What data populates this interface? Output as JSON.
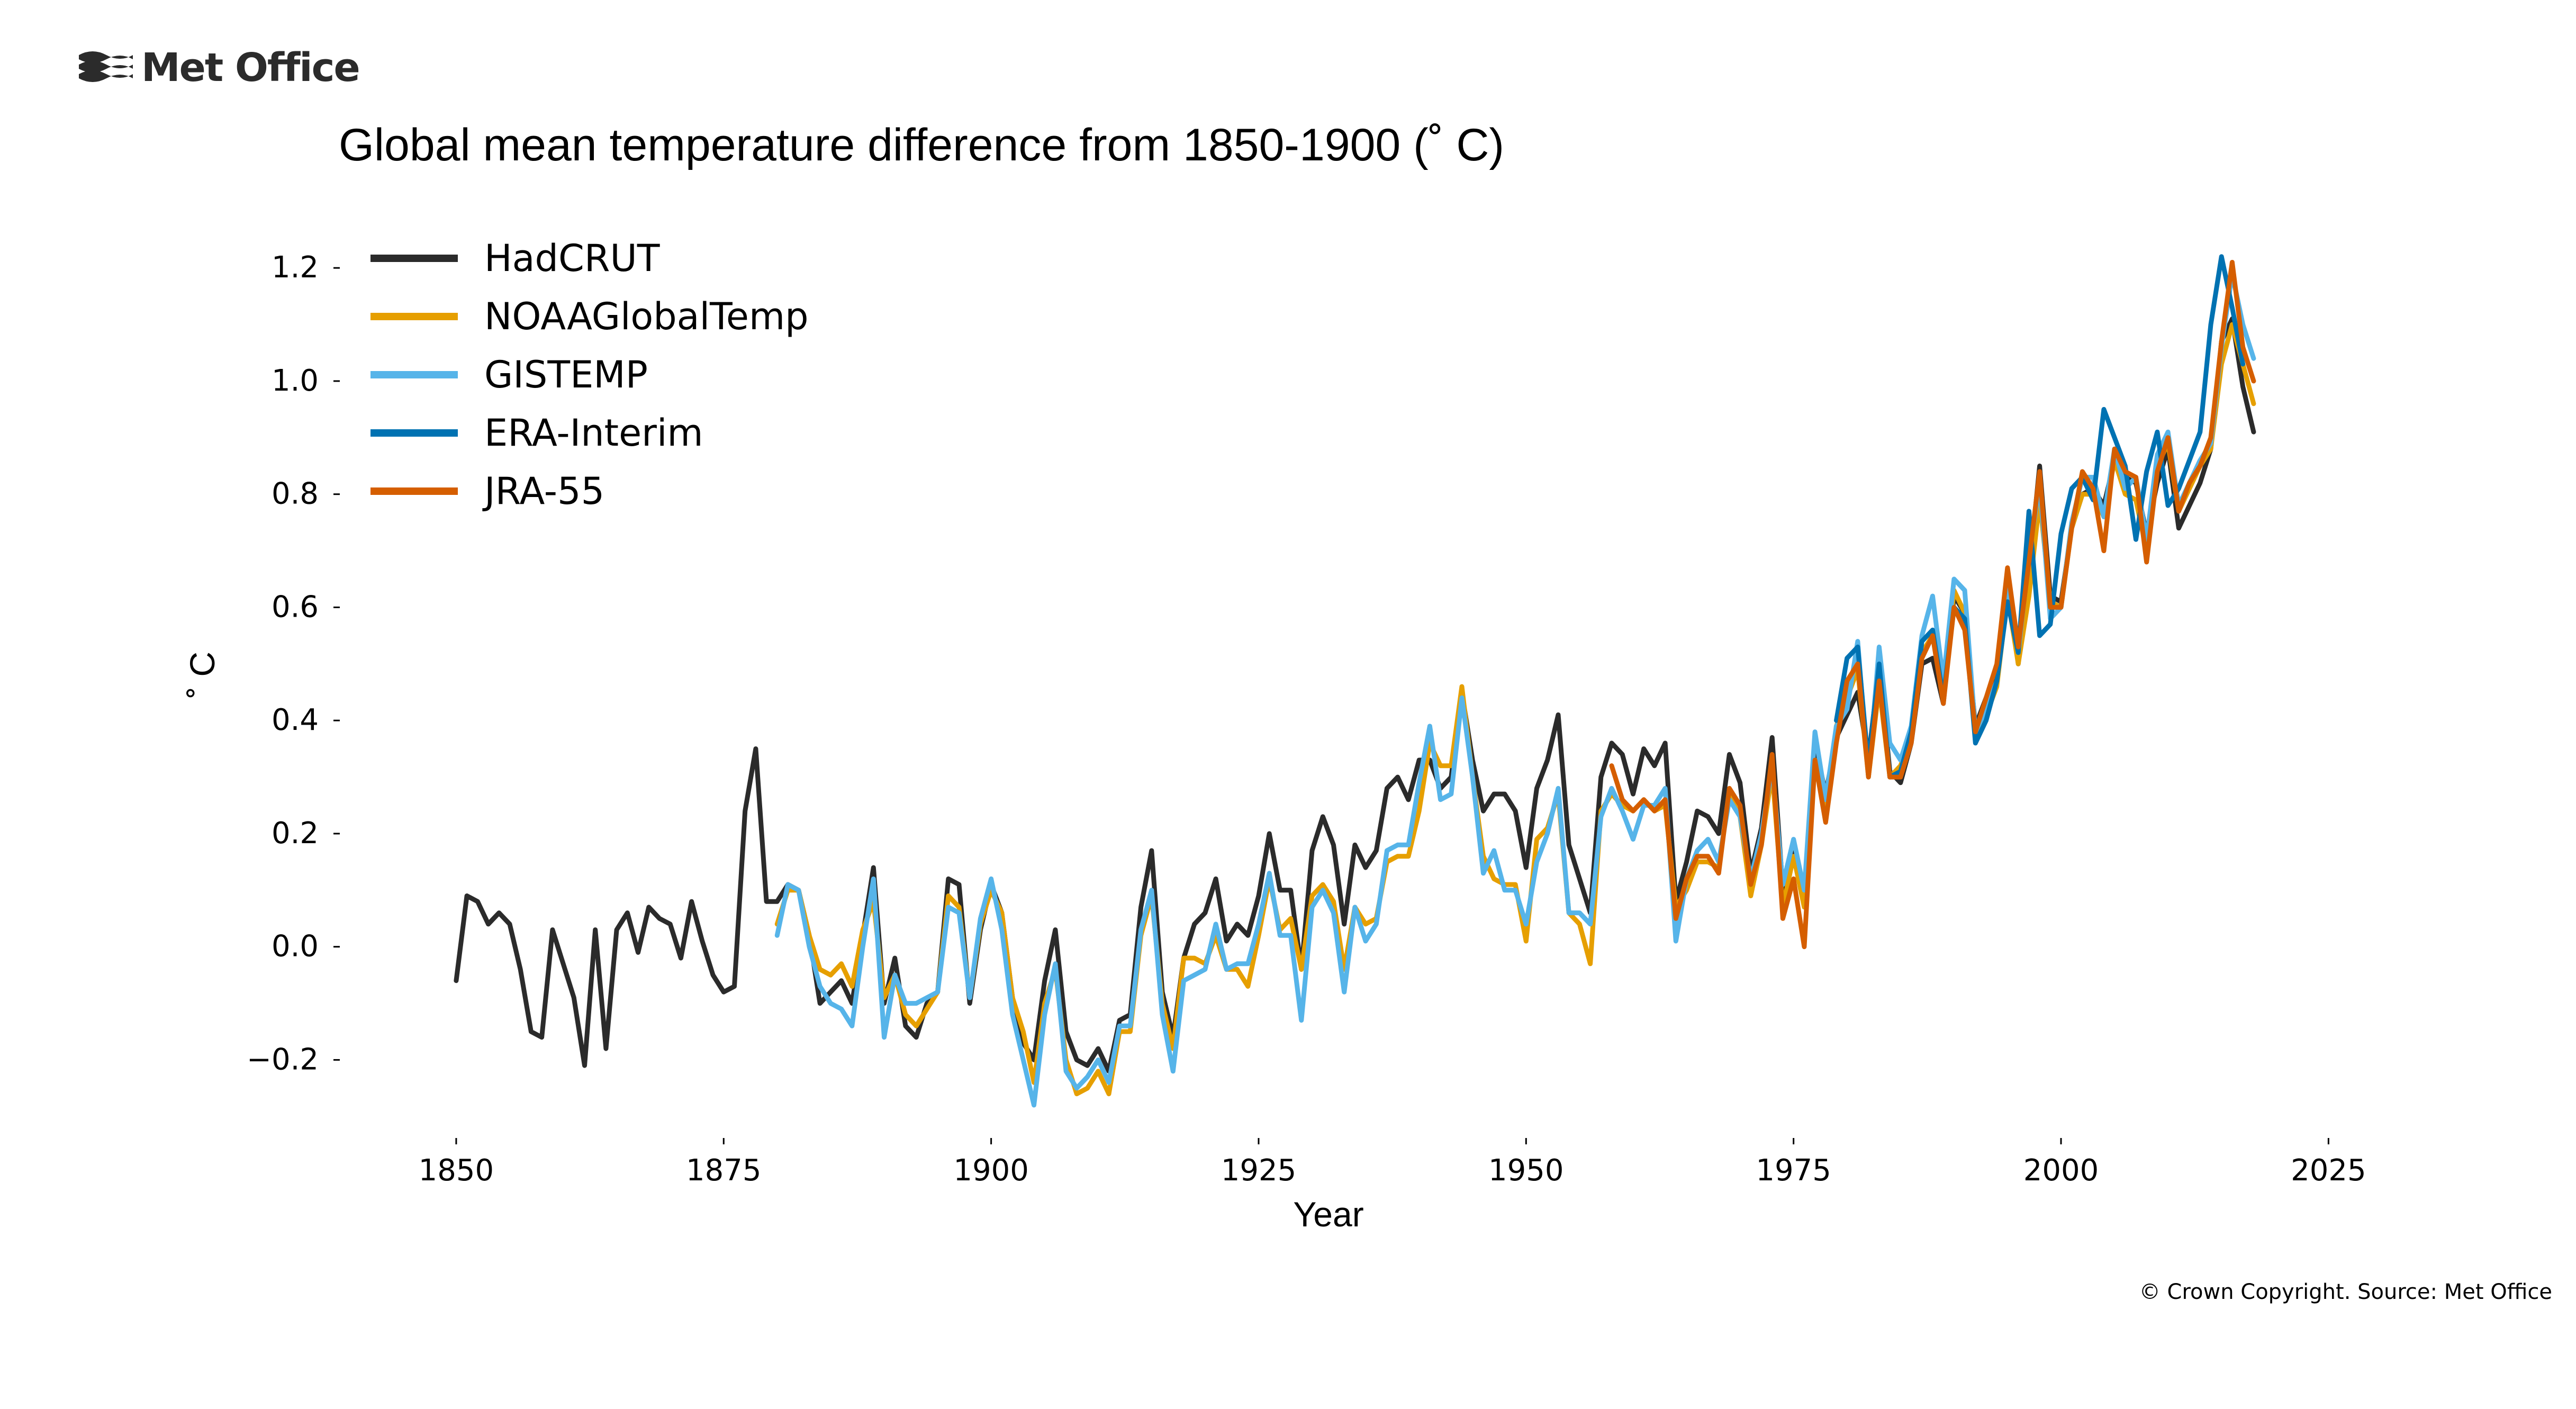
{
  "brand": {
    "logo_text": "Met Office"
  },
  "copyright": "© Crown Copyright. Source: Met Office",
  "colors": {
    "HadCRUT": "#2b2b2b",
    "NOAAGlobalTemp": "#e69f00",
    "GISTEMP": "#56b4e9",
    "ERA-Interim": "#0072b2",
    "JRA-55": "#d55e00"
  },
  "chart_data": {
    "type": "line",
    "title": "Global mean temperature difference from 1850-1900 (˚ C)",
    "xlabel": "Year",
    "ylabel": "˚ C",
    "xlim": [
      1841,
      2028
    ],
    "ylim": [
      -0.31,
      1.29
    ],
    "xticks": [
      1850,
      1875,
      1900,
      1925,
      1950,
      1975,
      2000,
      2025
    ],
    "yticks": [
      -0.2,
      0.0,
      0.2,
      0.4,
      0.6,
      0.8,
      1.0,
      1.2
    ],
    "ytick_labels": [
      "−0.2",
      "0.0",
      "0.2",
      "0.4",
      "0.6",
      "0.8",
      "1.0",
      "1.2"
    ],
    "grid": false,
    "legend_position": "top-left",
    "series": [
      {
        "name": "HadCRUT",
        "x_start": 1850,
        "values": [
          -0.06,
          0.09,
          0.08,
          0.04,
          0.06,
          0.04,
          -0.04,
          -0.15,
          -0.16,
          0.03,
          -0.03,
          -0.09,
          -0.21,
          0.03,
          -0.18,
          0.03,
          0.06,
          -0.01,
          0.07,
          0.05,
          0.04,
          -0.02,
          0.08,
          0.01,
          -0.05,
          -0.08,
          -0.07,
          0.24,
          0.35,
          0.08,
          0.08,
          0.11,
          0.1,
          0.02,
          -0.1,
          -0.08,
          -0.06,
          -0.1,
          0.02,
          0.14,
          -0.1,
          -0.02,
          -0.14,
          -0.16,
          -0.1,
          -0.08,
          0.12,
          0.11,
          -0.1,
          0.03,
          0.11,
          0.06,
          -0.09,
          -0.17,
          -0.2,
          -0.06,
          0.03,
          -0.15,
          -0.2,
          -0.21,
          -0.18,
          -0.22,
          -0.13,
          -0.12,
          0.07,
          0.17,
          -0.08,
          -0.16,
          -0.02,
          0.04,
          0.06,
          0.12,
          0.01,
          0.04,
          0.02,
          0.09,
          0.2,
          0.1,
          0.1,
          -0.04,
          0.17,
          0.23,
          0.18,
          0.04,
          0.18,
          0.14,
          0.17,
          0.28,
          0.3,
          0.26,
          0.33,
          0.33,
          0.28,
          0.3,
          0.45,
          0.33,
          0.24,
          0.27,
          0.27,
          0.24,
          0.14,
          0.28,
          0.33,
          0.41,
          0.18,
          0.12,
          0.06,
          0.3,
          0.36,
          0.34,
          0.27,
          0.35,
          0.32,
          0.36,
          0.08,
          0.15,
          0.24,
          0.23,
          0.2,
          0.34,
          0.29,
          0.13,
          0.21,
          0.37,
          0.1,
          0.17,
          0.09,
          0.36,
          0.27,
          0.37,
          0.41,
          0.45,
          0.33,
          0.5,
          0.31,
          0.29,
          0.36,
          0.5,
          0.51,
          0.43,
          0.62,
          0.59,
          0.39,
          0.44,
          0.48,
          0.65,
          0.5,
          0.66,
          0.85,
          0.62,
          0.61,
          0.74,
          0.8,
          0.81,
          0.78,
          0.86,
          0.83,
          0.82,
          0.73,
          0.82,
          0.88,
          0.74,
          0.78,
          0.82,
          0.88,
          1.07,
          1.11,
          0.99,
          0.91
        ]
      },
      {
        "name": "NOAAGlobalTemp",
        "x_start": 1880,
        "values": [
          0.04,
          0.1,
          0.1,
          0.02,
          -0.04,
          -0.05,
          -0.03,
          -0.07,
          0.03,
          0.08,
          -0.09,
          -0.05,
          -0.12,
          -0.14,
          -0.11,
          -0.08,
          0.09,
          0.07,
          -0.09,
          0.04,
          0.1,
          0.06,
          -0.09,
          -0.15,
          -0.24,
          -0.1,
          -0.04,
          -0.2,
          -0.26,
          -0.25,
          -0.22,
          -0.26,
          -0.15,
          -0.15,
          0.02,
          0.09,
          -0.1,
          -0.18,
          -0.02,
          -0.02,
          -0.03,
          0.02,
          -0.04,
          -0.04,
          -0.07,
          0.02,
          0.12,
          0.03,
          0.05,
          -0.04,
          0.09,
          0.11,
          0.08,
          -0.04,
          0.07,
          0.04,
          0.05,
          0.15,
          0.16,
          0.16,
          0.24,
          0.36,
          0.32,
          0.32,
          0.46,
          0.3,
          0.16,
          0.12,
          0.11,
          0.11,
          0.01,
          0.19,
          0.21,
          0.27,
          0.06,
          0.04,
          -0.03,
          0.24,
          0.27,
          0.25,
          0.24,
          0.26,
          0.24,
          0.25,
          0.07,
          0.1,
          0.15,
          0.15,
          0.14,
          0.27,
          0.23,
          0.09,
          0.18,
          0.31,
          0.07,
          0.16,
          0.07,
          0.33,
          0.23,
          0.39,
          0.44,
          0.49,
          0.3,
          0.46,
          0.3,
          0.32,
          0.37,
          0.52,
          0.55,
          0.45,
          0.63,
          0.59,
          0.37,
          0.41,
          0.46,
          0.62,
          0.5,
          0.62,
          0.79,
          0.61,
          0.6,
          0.74,
          0.8,
          0.8,
          0.76,
          0.86,
          0.8,
          0.79,
          0.7,
          0.85,
          0.89,
          0.77,
          0.81,
          0.85,
          0.88,
          1.03,
          1.1,
          1.03,
          0.96
        ]
      },
      {
        "name": "GISTEMP",
        "x_start": 1880,
        "values": [
          0.02,
          0.11,
          0.1,
          0.0,
          -0.07,
          -0.1,
          -0.11,
          -0.14,
          0.0,
          0.12,
          -0.16,
          -0.05,
          -0.1,
          -0.1,
          -0.09,
          -0.08,
          0.07,
          0.06,
          -0.09,
          0.05,
          0.12,
          0.03,
          -0.12,
          -0.2,
          -0.28,
          -0.12,
          -0.03,
          -0.22,
          -0.25,
          -0.23,
          -0.2,
          -0.24,
          -0.14,
          -0.14,
          0.03,
          0.1,
          -0.12,
          -0.22,
          -0.06,
          -0.05,
          -0.04,
          0.04,
          -0.04,
          -0.03,
          -0.03,
          0.04,
          0.13,
          0.02,
          0.02,
          -0.13,
          0.07,
          0.1,
          0.06,
          -0.08,
          0.07,
          0.01,
          0.04,
          0.17,
          0.18,
          0.18,
          0.29,
          0.39,
          0.26,
          0.27,
          0.44,
          0.3,
          0.13,
          0.17,
          0.1,
          0.1,
          0.04,
          0.15,
          0.2,
          0.28,
          0.06,
          0.06,
          0.04,
          0.23,
          0.28,
          0.24,
          0.19,
          0.25,
          0.25,
          0.28,
          0.01,
          0.12,
          0.17,
          0.19,
          0.15,
          0.26,
          0.23,
          0.12,
          0.2,
          0.32,
          0.11,
          0.19,
          0.1,
          0.38,
          0.26,
          0.39,
          0.42,
          0.54,
          0.3,
          0.53,
          0.36,
          0.33,
          0.39,
          0.55,
          0.62,
          0.47,
          0.65,
          0.63,
          0.38,
          0.42,
          0.47,
          0.64,
          0.52,
          0.69,
          0.82,
          0.58,
          0.6,
          0.75,
          0.83,
          0.83,
          0.76,
          0.88,
          0.81,
          0.83,
          0.72,
          0.87,
          0.91,
          0.78,
          0.82,
          0.86,
          0.89,
          1.06,
          1.19,
          1.1,
          1.04
        ]
      },
      {
        "name": "ERA-Interim",
        "x_start": 1979,
        "values": [
          0.4,
          0.51,
          0.53,
          0.32,
          0.5,
          0.3,
          0.31,
          0.38,
          0.54,
          0.56,
          0.44,
          0.6,
          0.58,
          0.36,
          0.4,
          0.47,
          0.61,
          0.52,
          0.77,
          0.55,
          0.57,
          0.73,
          0.81,
          0.83,
          0.79,
          0.95,
          0.9,
          0.85,
          0.72,
          0.84,
          0.91,
          0.78,
          0.81,
          0.86,
          0.91,
          1.1,
          1.22,
          1.13,
          1.03
        ]
      },
      {
        "name": "JRA-55",
        "x_start": 1958,
        "values": [
          0.32,
          0.26,
          0.24,
          0.26,
          0.24,
          0.26,
          0.05,
          0.12,
          0.16,
          0.16,
          0.13,
          0.28,
          0.25,
          0.11,
          0.18,
          0.34,
          0.05,
          0.12,
          0.0,
          0.33,
          0.22,
          0.36,
          0.47,
          0.5,
          0.3,
          0.47,
          0.3,
          0.3,
          0.36,
          0.51,
          0.55,
          0.43,
          0.6,
          0.56,
          0.38,
          0.44,
          0.5,
          0.67,
          0.53,
          0.68,
          0.84,
          0.6,
          0.6,
          0.74,
          0.84,
          0.81,
          0.7,
          0.88,
          0.84,
          0.83,
          0.68,
          0.84,
          0.9,
          0.77,
          0.82,
          0.85,
          0.9,
          1.07,
          1.21,
          1.06,
          1.0
        ]
      }
    ]
  }
}
